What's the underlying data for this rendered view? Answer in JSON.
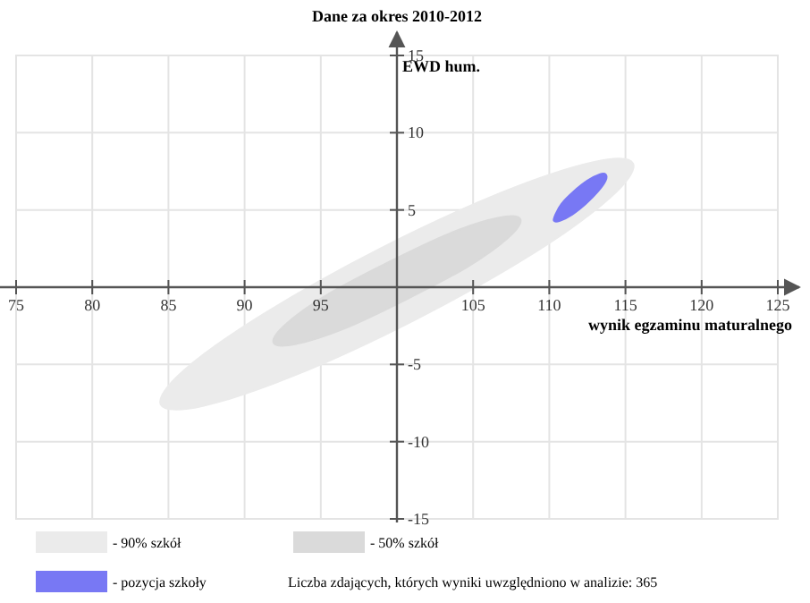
{
  "chart_data": {
    "type": "area",
    "title": "Dane za okres 2010-2012",
    "xlabel": "wynik egzaminu maturalnego",
    "ylabel": "EWD hum.",
    "xlim": [
      75,
      125
    ],
    "ylim": [
      -15,
      15
    ],
    "xticks": [
      75,
      80,
      85,
      90,
      95,
      {
        "value": 100,
        "label": null
      },
      105,
      110,
      115,
      120,
      125
    ],
    "yticks": [
      -15,
      -10,
      -5,
      {
        "value": 0,
        "label": null
      },
      5,
      10,
      15
    ],
    "grid": true,
    "legend": "bottom",
    "annotations": [
      "Liczba zdających, których wyniki uwzględniono w analizie: 365"
    ],
    "series": [
      {
        "name": "- 90% szkół",
        "color": "#ebebeb",
        "x": [
          115.5,
          112.9,
          106.8,
          98.9,
          91.3,
          86.0,
          84.5,
          87.2,
          93.3,
          101.2,
          108.8,
          114.0
        ],
        "values": [
          8.0,
          8.1,
          6.1,
          2.5,
          -1.7,
          -5.4,
          -7.6,
          -7.7,
          -5.7,
          -2.1,
          2.1,
          5.8
        ]
      },
      {
        "name": "- 50% szkół",
        "color": "#dadada",
        "x": [
          108.1,
          106.7,
          103.5,
          99.4,
          95.4,
          92.7,
          91.9,
          93.3,
          96.5,
          100.6,
          104.6,
          107.3
        ],
        "values": [
          4.4,
          4.5,
          3.5,
          1.6,
          -0.5,
          -2.4,
          -3.6,
          -3.7,
          -2.7,
          -0.8,
          1.3,
          3.2
        ]
      },
      {
        "name": "- pozycja szkoły",
        "color": "#7878f4",
        "x": [
          113.7,
          113.3,
          112.5,
          111.6,
          110.8,
          110.4,
          110.3,
          110.7,
          111.5,
          112.4,
          113.2,
          113.7
        ],
        "values": [
          7.3,
          7.3,
          6.9,
          6.2,
          5.4,
          4.7,
          4.3,
          4.3,
          4.7,
          5.4,
          6.2,
          6.9
        ]
      }
    ]
  }
}
